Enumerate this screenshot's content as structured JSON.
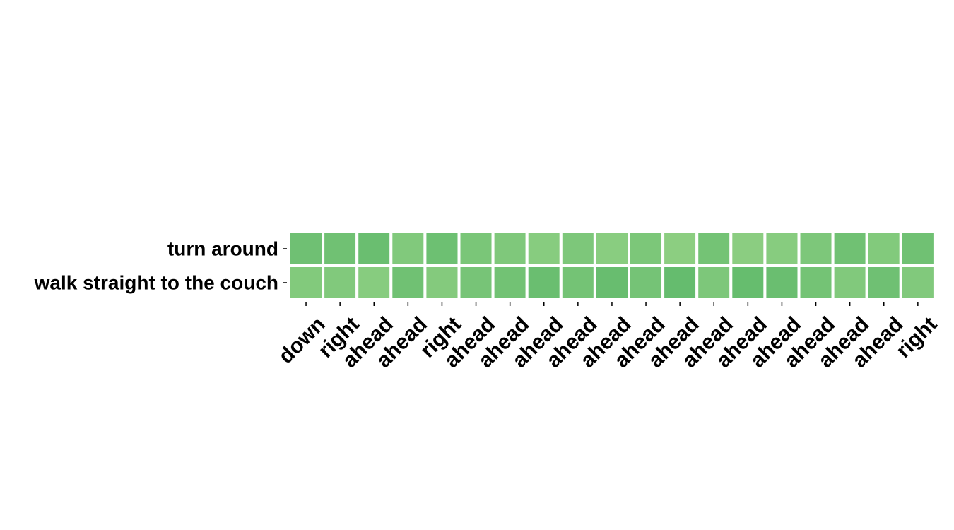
{
  "chart_data": {
    "type": "heatmap",
    "title": "",
    "xlabel": "",
    "ylabel": "",
    "rows": [
      "turn around",
      "walk straight to the couch"
    ],
    "columns": [
      "down",
      "right",
      "ahead",
      "ahead",
      "right",
      "ahead",
      "ahead",
      "ahead",
      "ahead",
      "ahead",
      "ahead",
      "ahead",
      "ahead",
      "ahead",
      "ahead",
      "ahead",
      "ahead",
      "ahead",
      "right"
    ],
    "values": [
      [
        0.62,
        0.6,
        0.68,
        0.4,
        0.64,
        0.48,
        0.42,
        0.32,
        0.44,
        0.3,
        0.46,
        0.26,
        0.56,
        0.28,
        0.32,
        0.44,
        0.6,
        0.38,
        0.6
      ],
      [
        0.38,
        0.4,
        0.32,
        0.6,
        0.36,
        0.52,
        0.58,
        0.68,
        0.56,
        0.7,
        0.54,
        0.74,
        0.44,
        0.72,
        0.68,
        0.56,
        0.4,
        0.62,
        0.4
      ]
    ],
    "colormap": {
      "low": "#a2d88c",
      "high": "#4fb263"
    },
    "value_range": [
      0,
      1
    ]
  }
}
